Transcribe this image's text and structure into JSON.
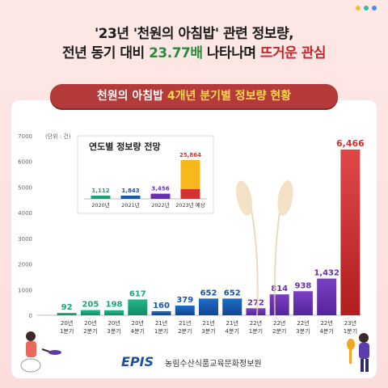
{
  "headline": {
    "line1": "'23년 '천원의 아침밥' 관련 정보량,",
    "line2_pre": "전년 동기 대비 ",
    "line2_highlight": "23.77배",
    "line2_mid": " 나타나며 ",
    "line2_highlight2": "뜨거운 관심"
  },
  "subtitle": {
    "pre": "천원의 아침밥 ",
    "accent": "4개년 분기별 정보량 현황"
  },
  "footer": {
    "logo": "EPIS",
    "org": "농림수산식품교육문화정보원"
  },
  "colors": {
    "green": "#1aa37a",
    "blue": "#1557b0",
    "purple": "#6a2fb0",
    "red": "#d23232",
    "yellow": "#f6b81a",
    "dots": [
      "#f2c037",
      "#3ab7a6",
      "#4a90e2"
    ]
  },
  "chart_data": [
    {
      "type": "bar",
      "unit_label": "(단위 : 건)",
      "ylim": [
        0,
        7000
      ],
      "yticks": [
        "0",
        "1000",
        "2000",
        "3000",
        "4000",
        "5000",
        "6000",
        "7000"
      ],
      "categories": [
        [
          "20년",
          "1분기"
        ],
        [
          "20년",
          "2분기"
        ],
        [
          "20년",
          "3분기"
        ],
        [
          "20년",
          "4분기"
        ],
        [
          "21년",
          "1분기"
        ],
        [
          "21년",
          "2분기"
        ],
        [
          "21년",
          "3분기"
        ],
        [
          "21년",
          "4분기"
        ],
        [
          "22년",
          "1분기"
        ],
        [
          "22년",
          "2분기"
        ],
        [
          "22년",
          "3분기"
        ],
        [
          "22년",
          "4분기"
        ],
        [
          "23년",
          "1분기"
        ]
      ],
      "values": [
        92,
        205,
        198,
        617,
        160,
        379,
        652,
        652,
        272,
        814,
        938,
        1432,
        6466
      ],
      "labels": [
        "92",
        "205",
        "198",
        "617",
        "160",
        "379",
        "652",
        "652",
        "272",
        "814",
        "938",
        "1,432",
        "6,466"
      ],
      "groups": [
        "green",
        "green",
        "green",
        "green",
        "blue",
        "blue",
        "blue",
        "blue",
        "purple",
        "purple",
        "purple",
        "purple",
        "red"
      ]
    },
    {
      "type": "bar",
      "title": "연도별 정보량 전망",
      "categories": [
        "2020년",
        "2021년",
        "2022년",
        "2023년 예상"
      ],
      "values": [
        1112,
        1843,
        3456,
        25864
      ],
      "labels": [
        "1,112",
        "1,843",
        "3,456",
        "25,864"
      ],
      "groups": [
        "green",
        "blue",
        "purple",
        "stack"
      ],
      "stack_actual": 6466
    }
  ]
}
